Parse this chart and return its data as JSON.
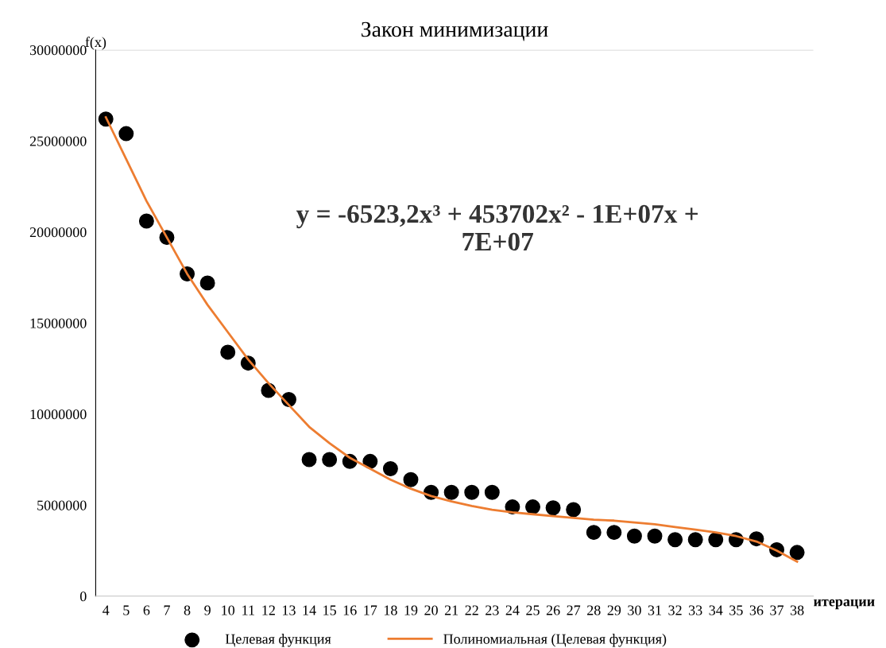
{
  "chart_data": {
    "type": "scatter",
    "title": "Закон минимизации",
    "xlabel": "итерации",
    "ylabel": "f(x)",
    "categories": [
      "4",
      "5",
      "6",
      "7",
      "8",
      "9",
      "10",
      "11",
      "12",
      "13",
      "14",
      "15",
      "16",
      "17",
      "18",
      "19",
      "20",
      "21",
      "22",
      "23",
      "24",
      "25",
      "26",
      "27",
      "28",
      "29",
      "30",
      "31",
      "32",
      "33",
      "34",
      "35",
      "36",
      "37",
      "38"
    ],
    "series": [
      {
        "name": "Целевая функция",
        "color": "#000000",
        "marker": "circle",
        "values": [
          26200000,
          25400000,
          20600000,
          19700000,
          17700000,
          17200000,
          13400000,
          12800000,
          11300000,
          10800000,
          7500000,
          7500000,
          7400000,
          7400000,
          7000000,
          6400000,
          5700000,
          5700000,
          5700000,
          5700000,
          4900000,
          4900000,
          4850000,
          4750000,
          3500000,
          3500000,
          3300000,
          3300000,
          3100000,
          3100000,
          3100000,
          3100000,
          3150000,
          2550000,
          2400000
        ]
      },
      {
        "name": "Полиномиальная (Целевая функция)",
        "type": "line",
        "color": "#ed7d31",
        "line_style": "solid",
        "values": [
          26300000,
          24000000,
          21700000,
          19700000,
          17700000,
          16000000,
          14500000,
          13000000,
          11700000,
          10500000,
          9300000,
          8400000,
          7600000,
          7000000,
          6400000,
          5900000,
          5500000,
          5200000,
          4950000,
          4750000,
          4600000,
          4500000,
          4400000,
          4300000,
          4200000,
          4150000,
          4050000,
          3950000,
          3800000,
          3650000,
          3500000,
          3300000,
          3000000,
          2500000,
          1900000
        ]
      }
    ],
    "ylim": [
      0,
      30000000
    ],
    "yticks": [
      0,
      5000000,
      10000000,
      15000000,
      20000000,
      25000000,
      30000000
    ],
    "grid": false,
    "legend": "bottom",
    "annotations": [
      "y = -6523,2x³ + 453702x² - 1E+07x +\n7E+07"
    ]
  }
}
